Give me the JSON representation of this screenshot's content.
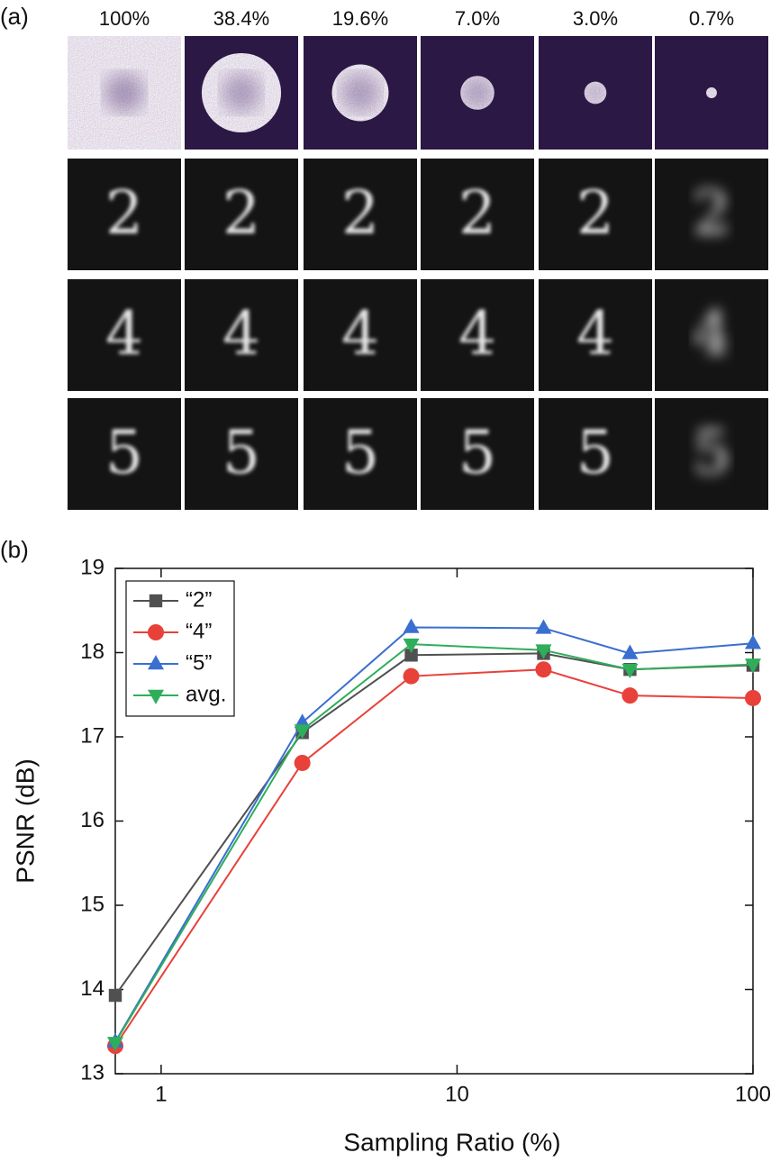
{
  "panel_a": {
    "label": "(a)",
    "column_labels": [
      "100%",
      "38.4%",
      "19.6%",
      "7.0%",
      "3.0%",
      "0.7%"
    ],
    "digits": [
      "2",
      "4",
      "5"
    ]
  },
  "panel_b": {
    "label": "(b)"
  },
  "chart_data": {
    "type": "line",
    "x_label": "Sampling Ratio (%)",
    "y_label": "PSNR (dB)",
    "x": [
      0.7,
      3.0,
      7.0,
      19.6,
      38.4,
      100
    ],
    "xlim": [
      0.7,
      100
    ],
    "xticks": [
      1,
      10,
      100
    ],
    "log_x": true,
    "ylim": [
      13,
      19
    ],
    "yticks": [
      13,
      14,
      15,
      16,
      17,
      18,
      19
    ],
    "legend": "upper left",
    "series": [
      {
        "name": "“2”",
        "color": "#505050",
        "marker": "square",
        "values": [
          13.93,
          17.05,
          17.97,
          17.99,
          17.8,
          17.85
        ]
      },
      {
        "name": "“4”",
        "color": "#e8413a",
        "marker": "circle",
        "values": [
          13.33,
          16.69,
          17.72,
          17.8,
          17.49,
          17.46
        ]
      },
      {
        "name": "“5”",
        "color": "#3a6fd0",
        "marker": "triangle-up",
        "values": [
          13.38,
          17.17,
          18.3,
          18.29,
          17.99,
          18.11
        ]
      },
      {
        "name": "avg.",
        "color": "#2eae5a",
        "marker": "triangle-down",
        "values": [
          13.37,
          17.08,
          18.1,
          18.03,
          17.8,
          17.86
        ]
      }
    ]
  }
}
